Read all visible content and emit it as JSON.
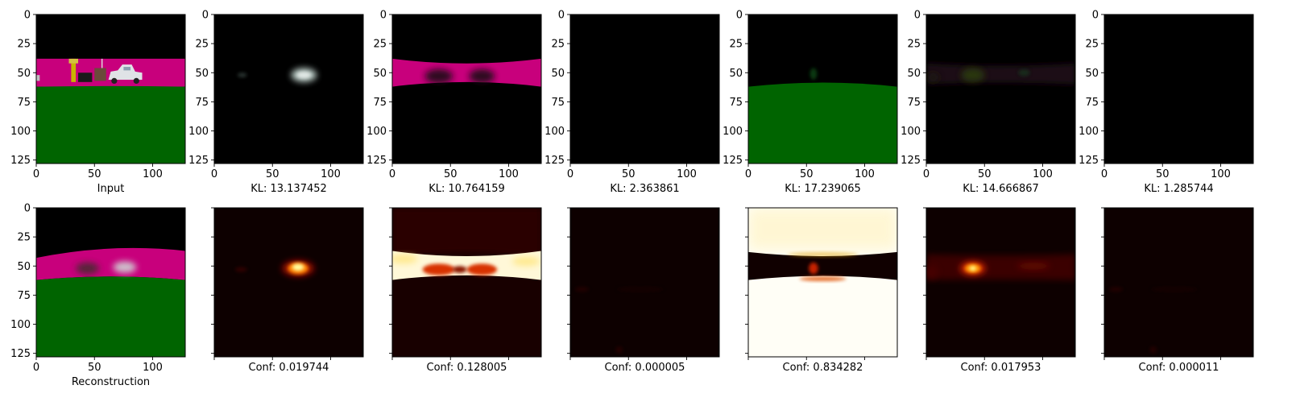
{
  "chart_data": {
    "type": "image_grid",
    "axis_range": [
      0,
      127
    ],
    "tick_values": [
      0,
      25,
      50,
      75,
      100,
      125
    ],
    "xtick_values": [
      0,
      50,
      100
    ],
    "top_row": [
      {
        "caption": "Input",
        "content": "scene"
      },
      {
        "caption": "KL: 13.137452",
        "content": "car-channel"
      },
      {
        "caption": "KL: 10.764159",
        "content": "band-channel"
      },
      {
        "caption": "KL: 2.363861",
        "content": "empty"
      },
      {
        "caption": "KL: 17.239065",
        "content": "ground-channel"
      },
      {
        "caption": "KL: 14.666867",
        "content": "faint-channel"
      },
      {
        "caption": "KL: 1.285744",
        "content": "empty"
      }
    ],
    "bottom_row": [
      {
        "caption": "Reconstruction",
        "content": "recon"
      },
      {
        "caption": "Conf: 0.019744",
        "content": "car-heat"
      },
      {
        "caption": "Conf: 0.128005",
        "content": "band-heat"
      },
      {
        "caption": "Conf: 0.000005",
        "content": "dark-heat"
      },
      {
        "caption": "Conf: 0.834282",
        "content": "ground-heat"
      },
      {
        "caption": "Conf: 0.017953",
        "content": "side-heat"
      },
      {
        "caption": "Conf: 0.000011",
        "content": "dark-heat"
      }
    ],
    "colors": {
      "sky": "#000000",
      "band": "#c8007c",
      "ground": "#006400",
      "heat_dark": "#0d0000",
      "heat_mid": "#d42000",
      "heat_hot": "#ffffe0"
    }
  }
}
